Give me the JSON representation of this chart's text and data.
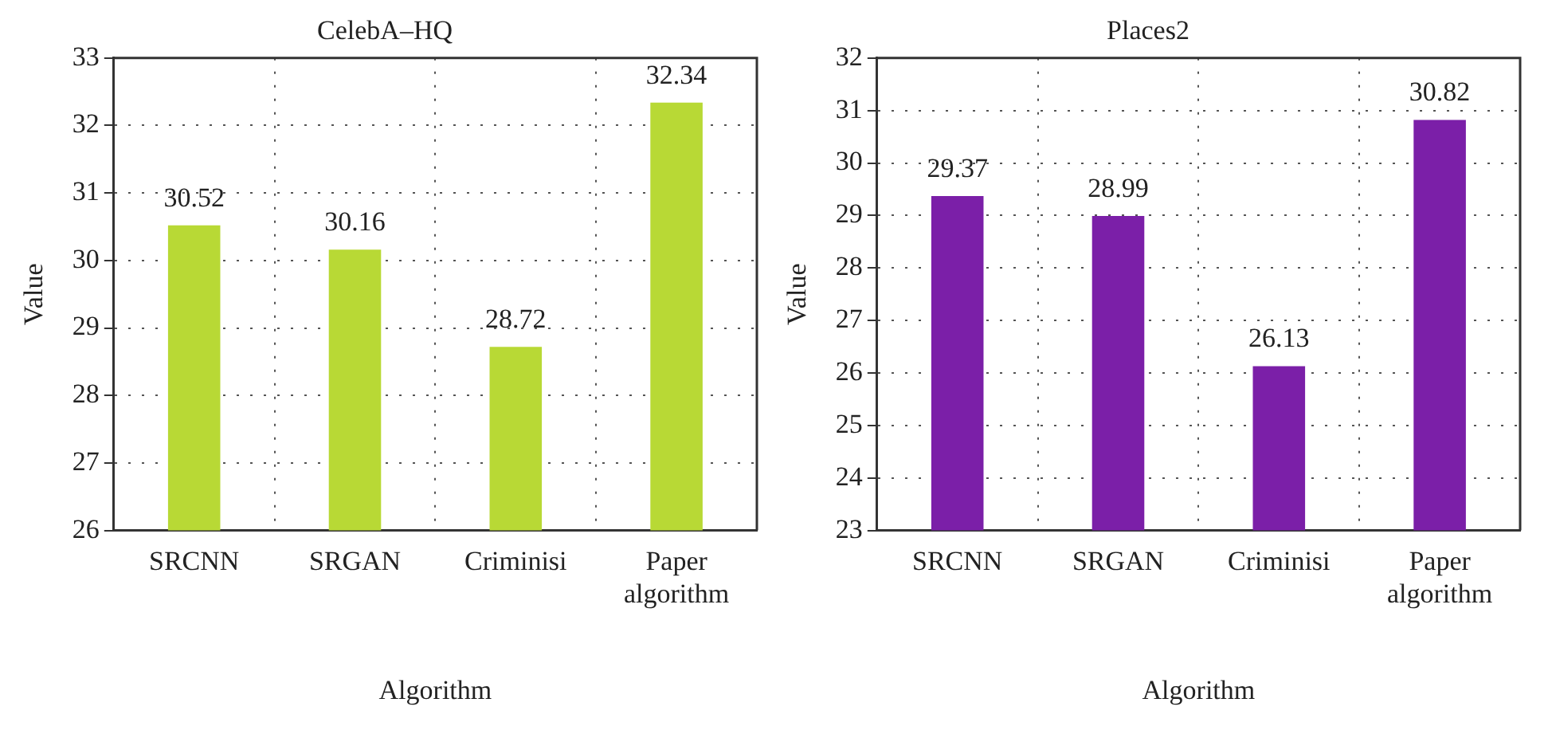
{
  "chart_data": [
    {
      "type": "bar",
      "title": "CelebA–HQ",
      "xlabel": "Algorithm",
      "ylabel": "Value",
      "categories": [
        "SRCNN",
        "SRGAN",
        "Criminisi",
        "Paper algorithm"
      ],
      "values": [
        30.52,
        30.16,
        28.72,
        32.34
      ],
      "color": "#b8d935",
      "ylim": [
        26,
        33
      ],
      "yticks": [
        26,
        27,
        28,
        29,
        30,
        31,
        32,
        33
      ],
      "grid": true,
      "data_labels": true
    },
    {
      "type": "bar",
      "title": "Places2",
      "xlabel": "Algorithm",
      "ylabel": "Value",
      "categories": [
        "SRCNN",
        "SRGAN",
        "Criminisi",
        "Paper algorithm"
      ],
      "values": [
        29.37,
        28.99,
        26.13,
        30.82
      ],
      "color": "#7b1fa8",
      "ylim": [
        23,
        32
      ],
      "yticks": [
        23,
        24,
        25,
        26,
        27,
        28,
        29,
        30,
        31,
        32
      ],
      "grid": true,
      "data_labels": true
    }
  ]
}
